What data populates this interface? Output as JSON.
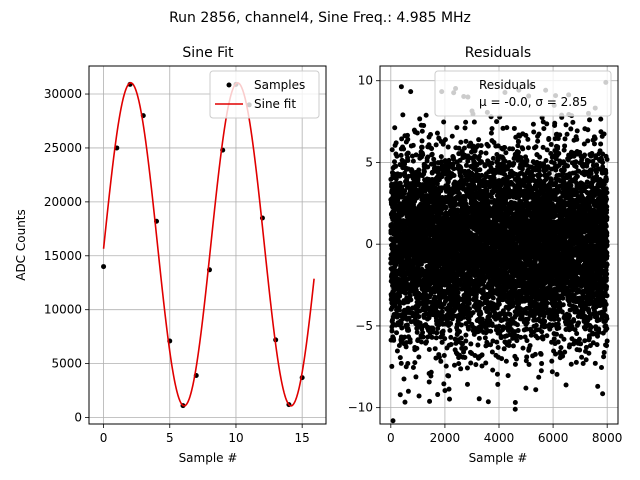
{
  "suptitle": "Run 2856, channel4, Sine Freq.: 4.985 MHz",
  "chart_data": [
    {
      "type": "scatter+line",
      "title": "Sine Fit",
      "xlabel": "Sample #",
      "ylabel": "ADC Counts",
      "xlim": [
        -1.1,
        16.8
      ],
      "ylim": [
        -600,
        32600
      ],
      "xticks": [
        0,
        5,
        10,
        15
      ],
      "yticks": [
        0,
        5000,
        10000,
        15000,
        20000,
        25000,
        30000
      ],
      "grid": true,
      "legend": {
        "placement": "top-right",
        "entries": [
          "Samples",
          "Sine fit"
        ]
      },
      "series": [
        {
          "name": "Samples",
          "kind": "scatter",
          "color": "#000000",
          "x": [
            0,
            1,
            2,
            3,
            4,
            5,
            6,
            7,
            8,
            9,
            10,
            11,
            12,
            13,
            14,
            15
          ],
          "y": [
            14000,
            25000,
            30900,
            28000,
            18200,
            7100,
            1100,
            3900,
            13700,
            24800,
            30900,
            29000,
            18500,
            7200,
            1200,
            3700
          ]
        },
        {
          "name": "Sine fit",
          "kind": "line",
          "color": "#e00000",
          "model": {
            "offset": 16060,
            "amplitude": 14980,
            "period": 8.07,
            "phase_sample": 0.035,
            "x_start": 0,
            "x_end": 15.9
          }
        }
      ]
    },
    {
      "type": "scatter",
      "title": "Residuals",
      "xlabel": "Sample #",
      "ylabel": "",
      "xlim": [
        -400,
        8400
      ],
      "ylim": [
        -11.0,
        10.9
      ],
      "xticks": [
        0,
        2000,
        4000,
        6000,
        8000
      ],
      "yticks": [
        -10,
        -5,
        0,
        5,
        10
      ],
      "grid": true,
      "legend": {
        "placement": "top-right",
        "entries": [
          "Residuals",
          "μ = -0.0, σ = 2.85"
        ]
      },
      "series": [
        {
          "name": "Residuals",
          "kind": "scatter",
          "color": "#000000",
          "n_points": 8000,
          "mean": -0.0,
          "sigma": 2.85,
          "outliers": [
            {
              "x": 80,
              "y": -10.8
            },
            {
              "x": 4600,
              "y": -10.1
            },
            {
              "x": 7950,
              "y": 9.9
            },
            {
              "x": 2850,
              "y": 9.0
            },
            {
              "x": 650,
              "y": -9.0
            },
            {
              "x": 7650,
              "y": -8.7
            }
          ]
        }
      ]
    }
  ]
}
